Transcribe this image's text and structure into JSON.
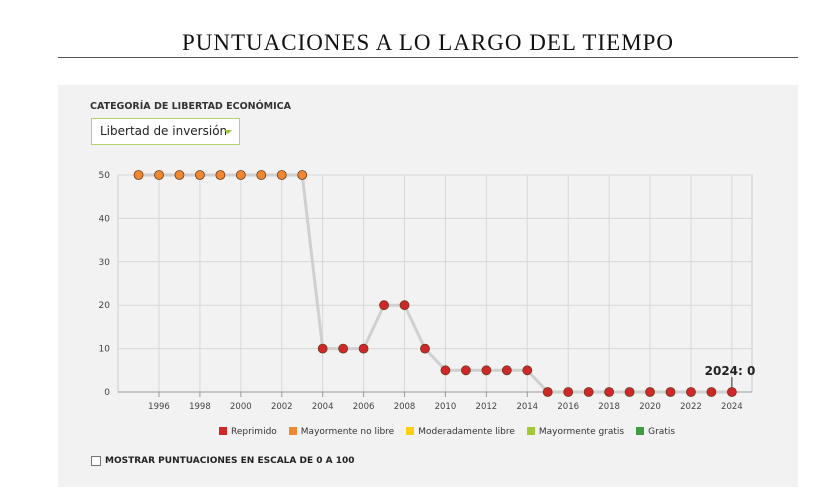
{
  "title": "PUNTUACIONES A LO LARGO DEL TIEMPO",
  "category_label": "CATEGORÍA DE LIBERTAD ECONÓMICA",
  "category_selected": "Libertad de inversión",
  "checkbox_label": "MOSTRAR PUNTUACIONES EN ESCALA DE 0 A 100",
  "tooltip": "2024: 0",
  "chart_data": {
    "type": "line",
    "x": [
      1995,
      1996,
      1997,
      1998,
      1999,
      2000,
      2001,
      2002,
      2003,
      2004,
      2005,
      2006,
      2007,
      2008,
      2009,
      2010,
      2011,
      2012,
      2013,
      2014,
      2015,
      2016,
      2017,
      2018,
      2019,
      2020,
      2021,
      2022,
      2023,
      2024
    ],
    "values": [
      50,
      50,
      50,
      50,
      50,
      50,
      50,
      50,
      50,
      10,
      10,
      10,
      20,
      20,
      10,
      5,
      5,
      5,
      5,
      5,
      0,
      0,
      0,
      0,
      0,
      0,
      0,
      0,
      0,
      0
    ],
    "ylim": [
      0,
      50
    ],
    "yticks": [
      "0",
      "10",
      "20",
      "30",
      "40",
      "50"
    ],
    "xticks": [
      "1996",
      "1998",
      "2000",
      "2002",
      "2004",
      "2006",
      "2008",
      "2010",
      "2012",
      "2014",
      "2016",
      "2018",
      "2020",
      "2022",
      "2024"
    ],
    "legend": [
      {
        "label": "Reprimido",
        "color": "#d0272a"
      },
      {
        "label": "Mayormente no libre",
        "color": "#f08731"
      },
      {
        "label": "Moderadamente libre",
        "color": "#fccf12"
      },
      {
        "label": "Mayormente gratis",
        "color": "#a5c83a"
      },
      {
        "label": "Gratis",
        "color": "#3c9d46"
      }
    ]
  }
}
